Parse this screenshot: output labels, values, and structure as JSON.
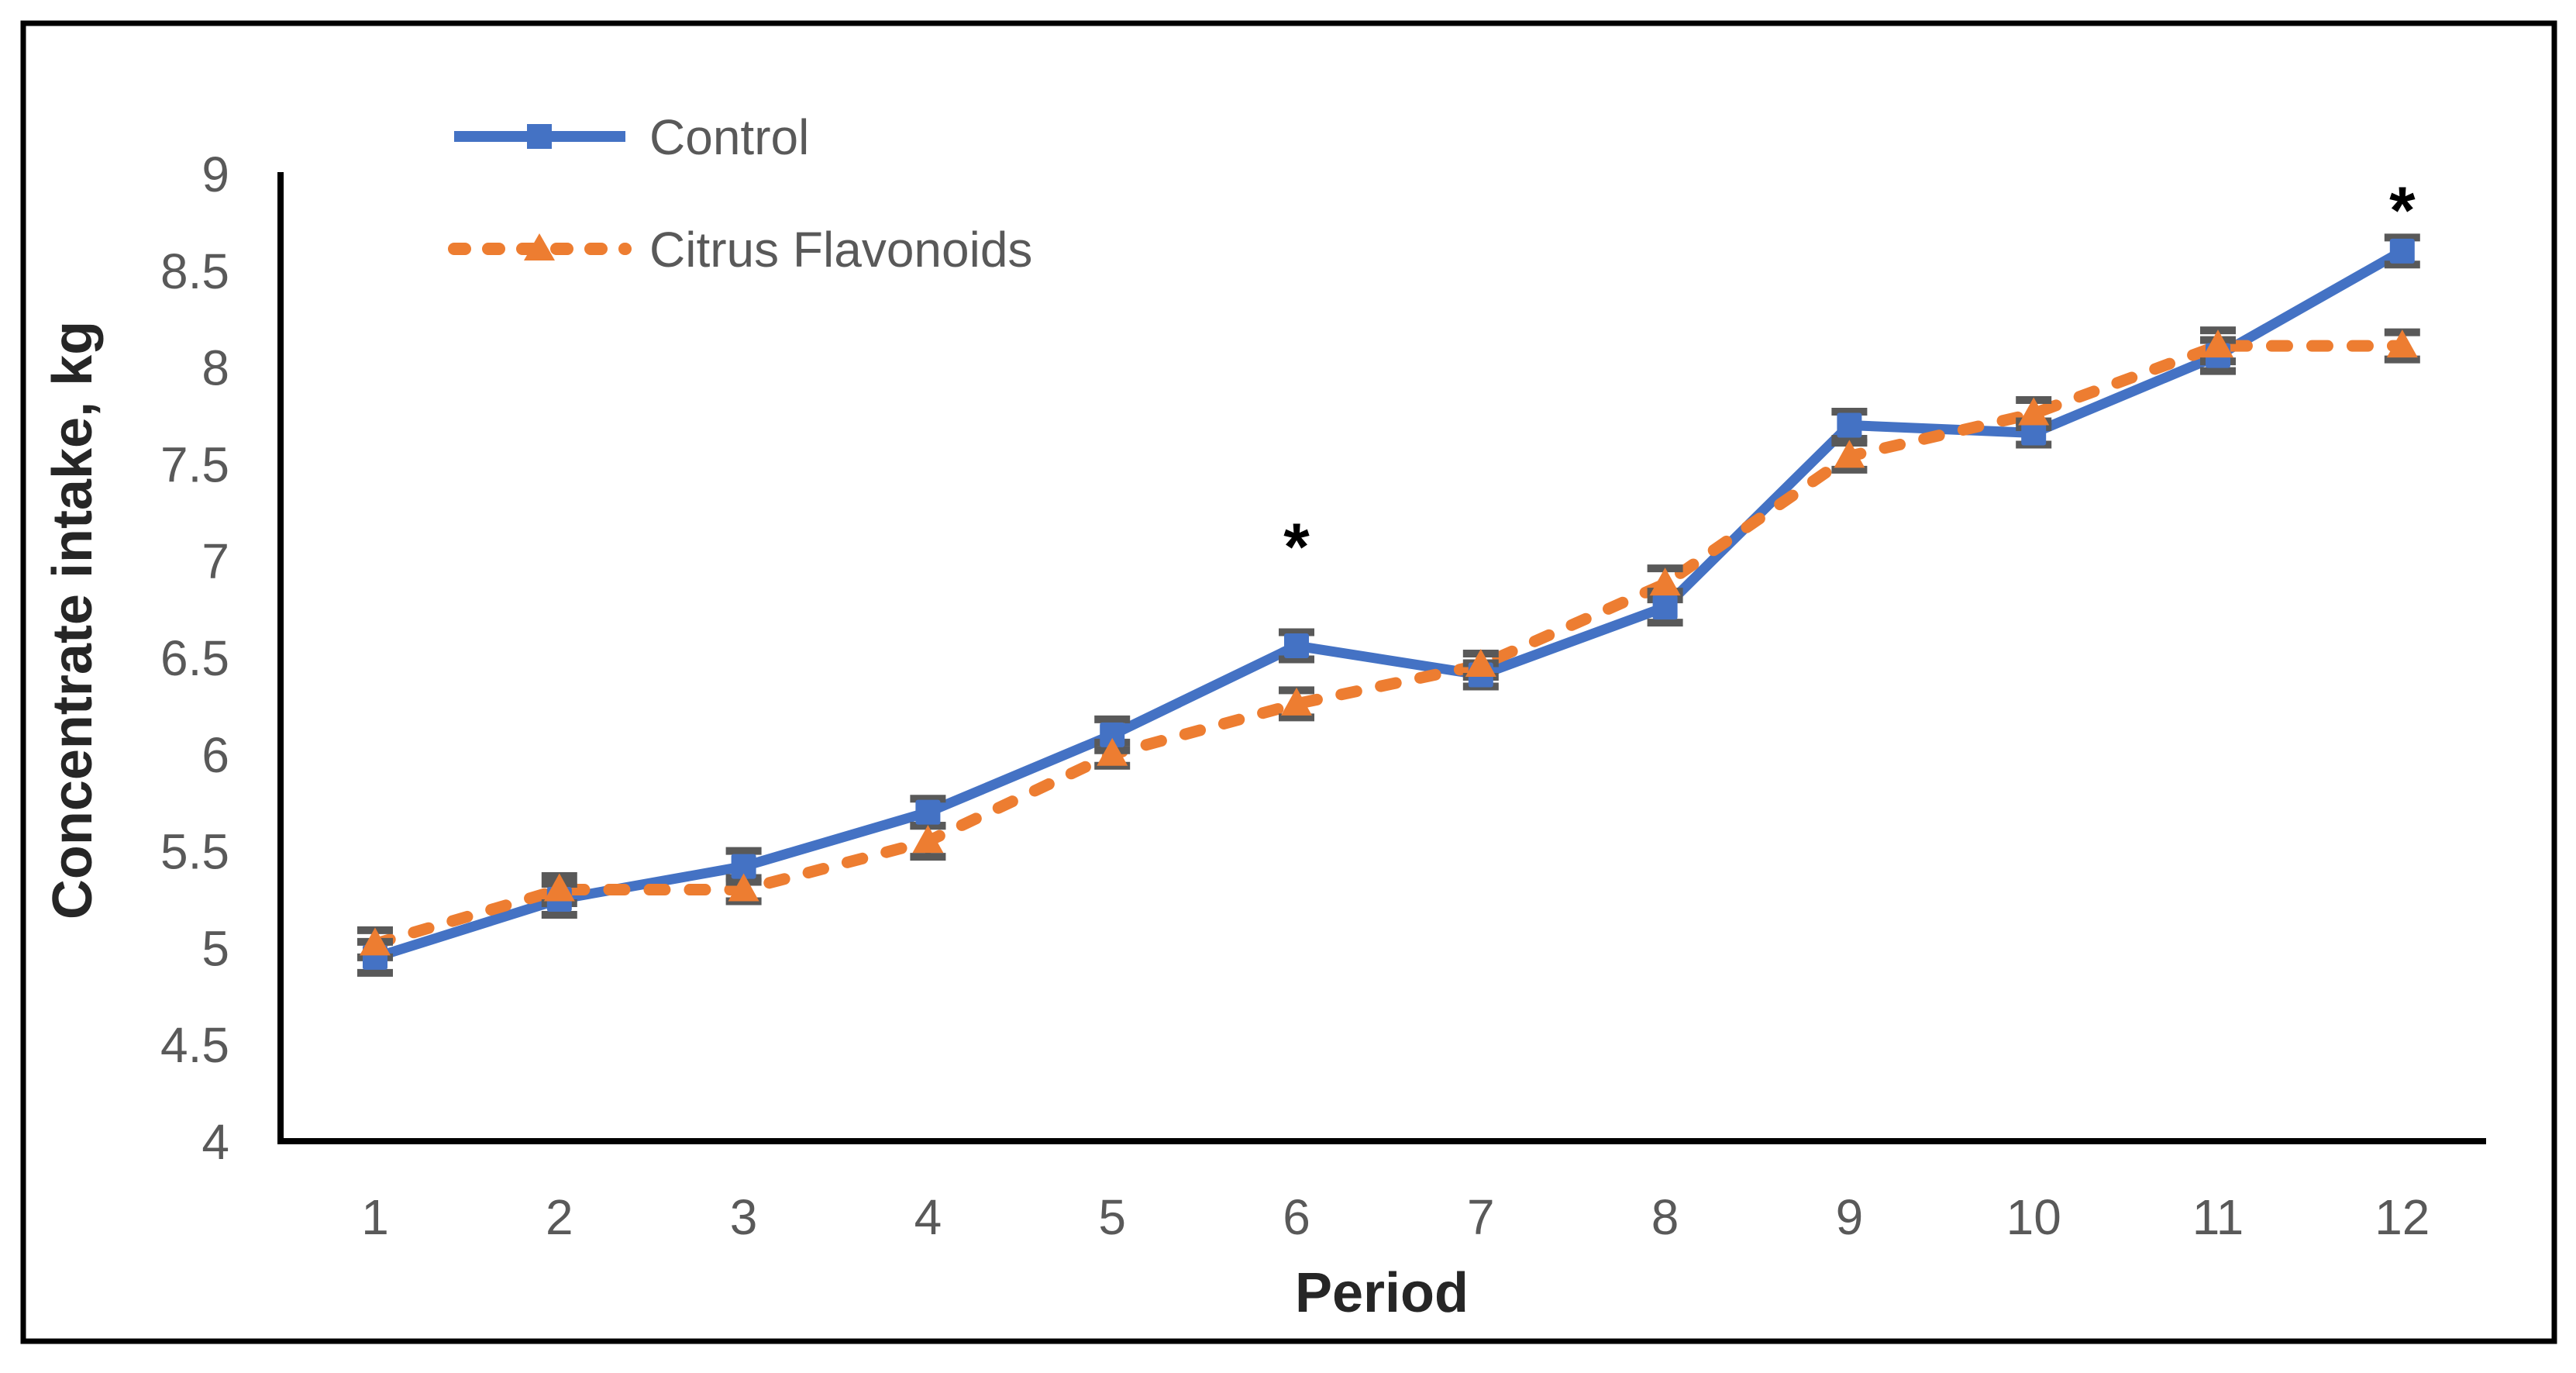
{
  "figure": {
    "background": "#ffffff",
    "border_color": "#000000",
    "axis_line_color": "#000000"
  },
  "chart_data": {
    "type": "line",
    "title": "",
    "xlabel": "Period",
    "ylabel": "Concentrate intake, kg",
    "x": [
      1,
      2,
      3,
      4,
      5,
      6,
      7,
      8,
      9,
      10,
      11,
      12
    ],
    "xlim": [
      1,
      12
    ],
    "ylim": [
      4,
      9
    ],
    "ytick_step": 0.5,
    "ytick_labels": [
      "4",
      "4.5",
      "5",
      "5.5",
      "6",
      "6.5",
      "7",
      "7.5",
      "8",
      "8.5",
      "9"
    ],
    "grid": false,
    "legend_position": "top-left-inside",
    "error_bar_color": "#595959",
    "tick_label_color": "#595959",
    "axis_title_color": "#262626",
    "series": [
      {
        "name": "Control",
        "color": "#4472C4",
        "line_style": "solid",
        "marker": "square",
        "values": [
          4.95,
          5.25,
          5.42,
          5.7,
          6.1,
          6.56,
          6.41,
          6.76,
          7.7,
          7.66,
          8.06,
          8.6
        ],
        "errors": [
          0.08,
          0.08,
          0.08,
          0.07,
          0.08,
          0.07,
          0.06,
          0.08,
          0.07,
          0.06,
          0.08,
          0.07
        ]
      },
      {
        "name": "Citrus Flavonoids",
        "color": "#ED7D31",
        "line_style": "dashed",
        "marker": "triangle",
        "values": [
          5.02,
          5.3,
          5.3,
          5.55,
          6.0,
          6.26,
          6.46,
          6.88,
          7.54,
          7.76,
          8.11,
          8.11
        ],
        "errors": [
          0.07,
          0.07,
          0.06,
          0.08,
          0.06,
          0.07,
          0.06,
          0.08,
          0.07,
          0.07,
          0.08,
          0.07
        ]
      }
    ],
    "annotations": [
      {
        "symbol": "*",
        "period": 6,
        "value": 7.08
      },
      {
        "symbol": "*",
        "period": 12,
        "value": 8.82
      }
    ]
  }
}
